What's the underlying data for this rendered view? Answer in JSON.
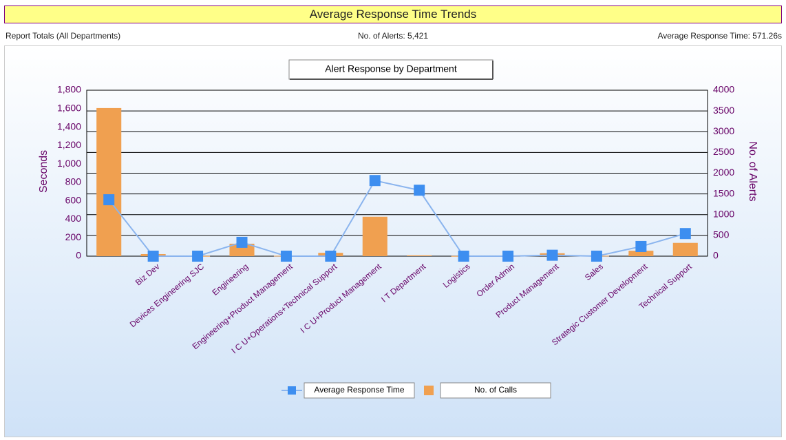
{
  "header": {
    "title": "Average Response Time Trends",
    "left": "Report Totals (All Departments)",
    "center": "No. of Alerts: 5,421",
    "right": "Average Response Time: 571.26s"
  },
  "chart_data": {
    "type": "bar-line",
    "title": "Alert Response by Department",
    "categories": [
      null,
      "Biz Dev",
      "Devices Engineering SJC",
      "Engineering",
      "Engineering+Product Management",
      "I C U+Operations+Technical Support",
      "I C U+Product Management",
      "I T Department",
      "Logistics",
      "Order Admin",
      "Product Management",
      "Sales",
      "Strategic Customer Development",
      "Technical Support"
    ],
    "series": [
      {
        "name": "Average Response Time",
        "type": "line",
        "color": "#3d8ef0",
        "line_color": "#8ab4ee",
        "values": [
          612,
          0,
          0,
          150,
          0,
          0,
          820,
          715,
          0,
          0,
          10,
          0,
          105,
          245
        ]
      },
      {
        "name": "No. of Calls",
        "type": "bar",
        "axis": "y2",
        "color": "#f0a050",
        "values": [
          3570,
          50,
          5,
          300,
          10,
          80,
          950,
          20,
          5,
          5,
          70,
          10,
          130,
          320
        ]
      }
    ],
    "ylabel": "Seconds",
    "y2label": "No. of Alerts",
    "ylim": [
      0,
      1800
    ],
    "yticks": [
      0,
      200,
      400,
      600,
      800,
      {
        "value": 1000,
        "label": "1,000"
      },
      {
        "value": 1200,
        "label": "1,200"
      },
      {
        "value": 1400,
        "label": "1,400"
      },
      {
        "value": 1600,
        "label": "1,600"
      },
      {
        "value": 1800,
        "label": "1,800"
      }
    ],
    "y2lim": [
      0,
      4000
    ],
    "y2ticks": [
      0,
      500,
      1000,
      1500,
      2000,
      2500,
      3000,
      3500,
      4000
    ],
    "grid": true
  }
}
